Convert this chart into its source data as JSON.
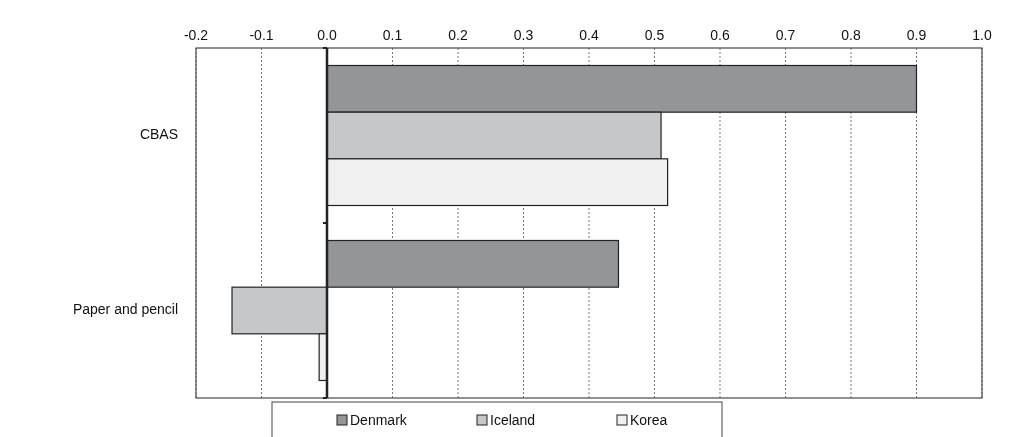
{
  "chart_data": {
    "type": "bar",
    "orientation": "horizontal",
    "categories": [
      "CBAS",
      "Paper and pencil"
    ],
    "series": [
      {
        "name": "Denmark",
        "color": "#949598",
        "values": [
          0.9,
          0.445
        ]
      },
      {
        "name": "Iceland",
        "color": "#c6c7c9",
        "values": [
          0.51,
          -0.145
        ]
      },
      {
        "name": "Korea",
        "color": "#f0f0f0",
        "values": [
          0.52,
          -0.012
        ]
      }
    ],
    "xlim": [
      -0.2,
      1.0
    ],
    "xticks": [
      {
        "value": -0.2,
        "label": "-0.2"
      },
      {
        "value": -0.1,
        "label": "-0.1"
      },
      {
        "value": 0,
        "label": "0.0"
      },
      {
        "value": 0.1,
        "label": "0.1"
      },
      {
        "value": 0.2,
        "label": "0.2"
      },
      {
        "value": 0.3,
        "label": "0.3"
      },
      {
        "value": 0.4,
        "label": "0.4"
      },
      {
        "value": 0.5,
        "label": "0.5"
      },
      {
        "value": 0.6,
        "label": "0.6"
      },
      {
        "value": 0.7,
        "label": "0.7"
      },
      {
        "value": 0.8,
        "label": "0.8"
      },
      {
        "value": 0.9,
        "label": "0.9"
      },
      {
        "value": 1.0,
        "label": "1.0"
      }
    ],
    "grid": "x",
    "legend": "bottom"
  }
}
